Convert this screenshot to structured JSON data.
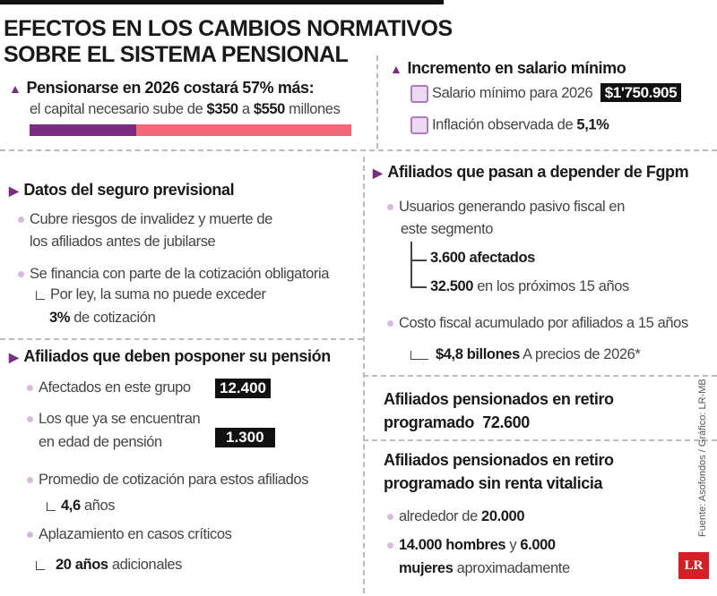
{
  "title": {
    "line1": "EFECTOS EN LOS CAMBIOS NORMATIVOS",
    "line2": "SOBRE EL SISTEMA PENSIONAL"
  },
  "colors": {
    "accent": "#7a2b82",
    "pink": "#f06a7a",
    "dot": "#d9b8e0",
    "logo": "#d32027"
  },
  "pension_cost": {
    "heading": "Pensionarse en 2026 costará 57% más:",
    "text_a": "el capital necesario sube de ",
    "from": "$350",
    "text_b": " a ",
    "to": "$550",
    "text_c": " millones",
    "bar_from": 350,
    "bar_to": 550
  },
  "minimum_wage": {
    "heading": "Incremento en salario mínimo",
    "salary_label": "Salario mínimo para 2026",
    "salary_value": "$1'750.905",
    "inflation_label": "Inflación observada de ",
    "inflation_value": "5,1%"
  },
  "insurance": {
    "heading": "Datos del seguro previsional",
    "item1_l1": "Cubre riesgos de invalidez y muerte de",
    "item1_l2": "los afiliados antes de jubilarse",
    "item2": "Se financia con parte de la cotización obligatoria",
    "sub_l1": "Por ley, la suma no puede exceder",
    "sub_value": "3%",
    "sub_rest": " de cotización"
  },
  "postpone": {
    "heading": "Afiliados que deben posponer su pensión",
    "affected_label": "Afectados en este grupo",
    "affected_value": "12.400",
    "age_l1": "Los que ya se encuentran",
    "age_l2": "en edad de pensión",
    "age_value": "1.300",
    "avg_label": "Promedio de cotización para estos afiliados",
    "avg_value": "4,6",
    "avg_unit": " años",
    "delay_label": "Aplazamiento en casos críticos",
    "delay_value": "20 años",
    "delay_unit": " adicionales"
  },
  "fgpm": {
    "heading": "Afiliados que pasan a depender de Fgpm",
    "users_l1": "Usuarios generando pasivo fiscal en",
    "users_l2": "este segmento",
    "affected": "3.600 afectados",
    "future_value": "32.500",
    "future_text": " en los próximos 15 años",
    "cost_label": "Costo fiscal acumulado por afiliados a 15 años",
    "cost_value": "$4,8 billones",
    "cost_note": " A precios de 2026*"
  },
  "programmed": {
    "l1": "Afiliados pensionados en retiro",
    "l2": "programado",
    "value": "72.600"
  },
  "no_annuity": {
    "l1": "Afiliados pensionados en retiro",
    "l2": "programado sin renta vitalicia",
    "around": "alrededor de ",
    "around_value": "20.000",
    "men": "14.000 hombres",
    "and": " y ",
    "women_num": "6.000",
    "women": "mujeres",
    "approx": " aproximadamente"
  },
  "source": "Fuente: Asofondos / Gráfico: LR-MB",
  "logo": "LR"
}
